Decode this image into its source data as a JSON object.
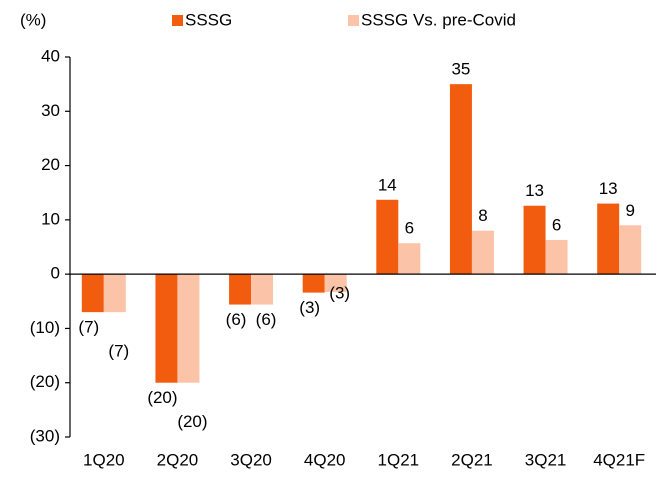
{
  "chart_data": {
    "type": "bar",
    "y_label": "(%)",
    "categories": [
      "1Q20",
      "2Q20",
      "3Q20",
      "4Q20",
      "1Q21",
      "2Q21",
      "3Q21",
      "4Q21F"
    ],
    "series": [
      {
        "name": "SSSG",
        "color": "#f25c0f",
        "values": [
          -7,
          -20,
          -5.6,
          -3.4,
          13.7,
          35,
          12.6,
          13
        ],
        "value_labels": [
          "(7)",
          "(20)",
          "(6)",
          "(3)",
          "14",
          "35",
          "13",
          "13"
        ]
      },
      {
        "name": "SSSG Vs. pre-Covid",
        "color": "#fbc4a8",
        "values": [
          -7,
          -20,
          -5.6,
          -3.3,
          5.7,
          8,
          6.3,
          9
        ],
        "value_labels": [
          "(7)",
          "(20)",
          "(6)",
          "(3)",
          "6",
          "8",
          "6",
          "9"
        ]
      }
    ],
    "ylim": [
      -30,
      40
    ],
    "yticks": [
      {
        "value": -30,
        "label": "(30)"
      },
      {
        "value": -20,
        "label": "(20)"
      },
      {
        "value": -10,
        "label": "(10)"
      },
      0,
      10,
      20,
      30,
      40
    ]
  }
}
